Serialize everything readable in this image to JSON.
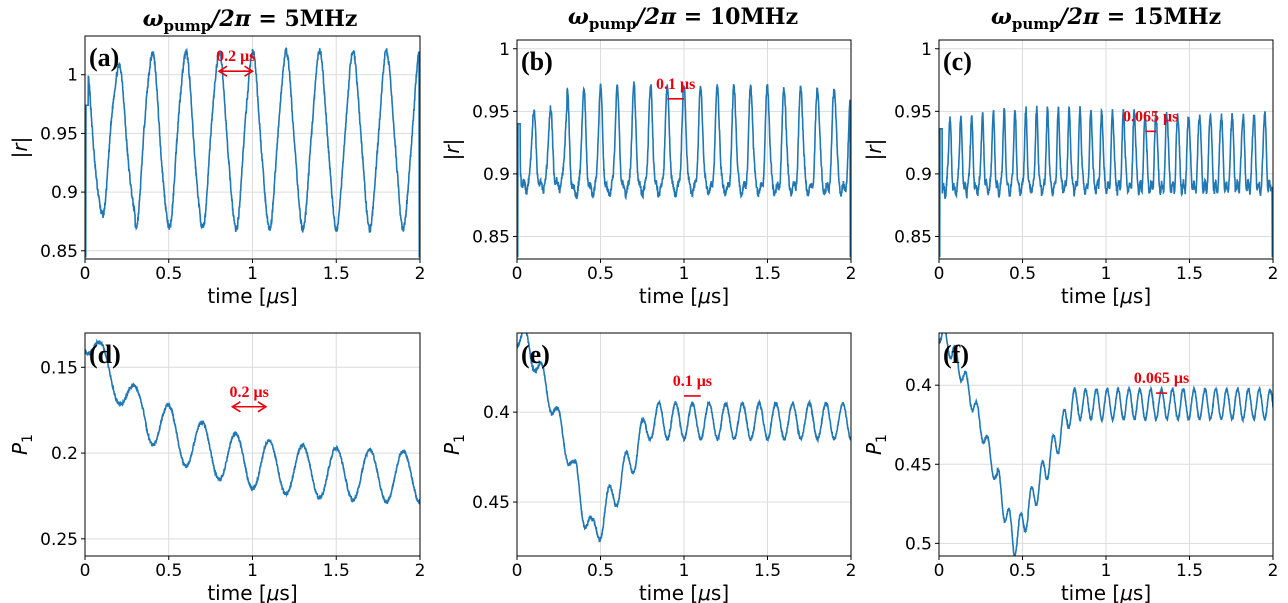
{
  "colors": {
    "series": "#1f77b4",
    "annotation": "#e8000b",
    "grid": "#dcdcdc"
  },
  "column_titles": [
    {
      "prefix": "ω",
      "sub": "pump",
      "mid": "/2",
      "pi": "π",
      "suffix": " = 5MHz"
    },
    {
      "prefix": "ω",
      "sub": "pump",
      "mid": "/2",
      "pi": "π",
      "suffix": " = 10MHz"
    },
    {
      "prefix": "ω",
      "sub": "pump",
      "mid": "/2",
      "pi": "π",
      "suffix": " = 15MHz"
    }
  ],
  "chart_data": [
    {
      "panel": "(a)",
      "type": "line",
      "xlabel": "time [μs]",
      "ylabel": "|r|",
      "xlim": [
        0,
        2
      ],
      "ylim": [
        0.843,
        1.033
      ],
      "yreversed": false,
      "xticks": [
        0,
        0.5,
        1,
        1.5,
        2
      ],
      "xtick_labels": [
        "0",
        "0.5",
        "1",
        "1.5",
        "2"
      ],
      "yticks": [
        0.85,
        0.9,
        0.95,
        1
      ],
      "ytick_labels": [
        "0.85",
        "0.9",
        "0.95",
        "1"
      ],
      "grid": true,
      "signal": {
        "pump_period_us": 0.2,
        "offset": 0.944,
        "early_amplitude": 0.062,
        "late_amplitude": 0.072
      },
      "annotation": {
        "text": "0.2 μs",
        "x_start": 0.8,
        "x_end": 1.0,
        "y": 1.003,
        "style": "double-arrow"
      }
    },
    {
      "panel": "(b)",
      "type": "line",
      "xlabel": "time [μs]",
      "ylabel": "|r|",
      "xlim": [
        0,
        2
      ],
      "ylim": [
        0.832,
        1.007
      ],
      "yreversed": false,
      "xticks": [
        0,
        0.5,
        1,
        1.5,
        2
      ],
      "xtick_labels": [
        "0",
        "0.5",
        "1",
        "1.5",
        "2"
      ],
      "yticks": [
        0.85,
        0.9,
        0.95,
        1
      ],
      "ytick_labels": [
        "0.85",
        "0.9",
        "0.95",
        "1"
      ],
      "grid": true,
      "signal": {
        "pump_period_us": 0.1,
        "offset": 0.91,
        "early_amplitude": 0.03,
        "late_amplitude": 0.04
      },
      "annotation": {
        "text": "0.1 μs",
        "x_start": 0.9,
        "x_end": 1.0,
        "y": 0.96,
        "style": "segment"
      }
    },
    {
      "panel": "(c)",
      "type": "line",
      "xlabel": "time [μs]",
      "ylabel": "|r|",
      "xlim": [
        0,
        2
      ],
      "ylim": [
        0.832,
        1.007
      ],
      "yreversed": false,
      "xticks": [
        0,
        0.5,
        1,
        1.5,
        2
      ],
      "xtick_labels": [
        "0",
        "0.5",
        "1",
        "1.5",
        "2"
      ],
      "yticks": [
        0.85,
        0.9,
        0.95,
        1
      ],
      "ytick_labels": [
        "0.85",
        "0.9",
        "0.95",
        "1"
      ],
      "grid": true,
      "signal": {
        "pump_period_us": 0.065,
        "offset": 0.906,
        "early_amplitude": 0.028,
        "late_amplitude": 0.03
      },
      "annotation": {
        "text": "0.065 μs",
        "x_start": 1.235,
        "x_end": 1.3,
        "y": 0.934,
        "style": "segment"
      }
    },
    {
      "panel": "(d)",
      "type": "line",
      "xlabel": "time [μs]",
      "ylabel": "P_1",
      "xlim": [
        0,
        2
      ],
      "ylim": [
        0.26,
        0.13
      ],
      "yreversed": true,
      "xticks": [
        0,
        0.5,
        1,
        1.5,
        2
      ],
      "xtick_labels": [
        "0",
        "0.5",
        "1",
        "1.5",
        "2"
      ],
      "yticks": [
        0.15,
        0.2,
        0.25
      ],
      "ytick_labels": [
        "0.15",
        "0.2",
        "0.25"
      ],
      "grid": true,
      "signal": {
        "pump_period_us": 0.2,
        "start": 0.13,
        "plateau": 0.215,
        "amplitude": 0.03
      },
      "annotation": {
        "text": "0.2 μs",
        "x_start": 0.88,
        "x_end": 1.08,
        "y": 0.173,
        "style": "double-arrow"
      }
    },
    {
      "panel": "(e)",
      "type": "line",
      "xlabel": "time [μs]",
      "ylabel": "P_1",
      "xlim": [
        0,
        2
      ],
      "ylim": [
        0.48,
        0.356
      ],
      "yreversed": true,
      "xticks": [
        0,
        0.5,
        1,
        1.5,
        2
      ],
      "xtick_labels": [
        "0",
        "0.5",
        "1",
        "1.5",
        "2"
      ],
      "yticks": [
        0.4,
        0.45
      ],
      "ytick_labels": [
        "0.4",
        "0.45"
      ],
      "grid": true,
      "signal": {
        "pump_period_us": 0.1,
        "start": 0.356,
        "dip": 0.47,
        "plateau": 0.405,
        "amplitude": 0.02
      },
      "annotation": {
        "text": "0.1 μs",
        "x_start": 1.0,
        "x_end": 1.1,
        "y": 0.391,
        "style": "segment"
      }
    },
    {
      "panel": "(f)",
      "type": "line",
      "xlabel": "time [μs]",
      "ylabel": "P_1",
      "xlim": [
        0,
        2
      ],
      "ylim": [
        0.508,
        0.367
      ],
      "yreversed": true,
      "xticks": [
        0,
        0.5,
        1,
        1.5,
        2
      ],
      "xtick_labels": [
        "0",
        "0.5",
        "1",
        "1.5",
        "2"
      ],
      "yticks": [
        0.4,
        0.45,
        0.5
      ],
      "ytick_labels": [
        "0.4",
        "0.45",
        "0.5"
      ],
      "grid": true,
      "signal": {
        "pump_period_us": 0.065,
        "start": 0.367,
        "dip": 0.5,
        "plateau": 0.412,
        "amplitude": 0.019
      },
      "annotation": {
        "text": "0.065 μs",
        "x_start": 1.3,
        "x_end": 1.365,
        "y": 0.405,
        "style": "segment"
      }
    }
  ]
}
